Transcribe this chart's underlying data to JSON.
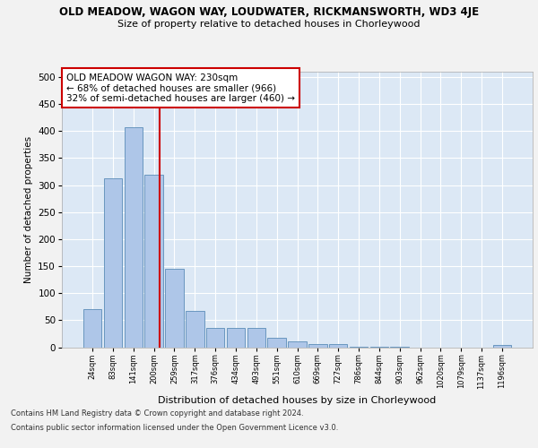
{
  "title1": "OLD MEADOW, WAGON WAY, LOUDWATER, RICKMANSWORTH, WD3 4JE",
  "title2": "Size of property relative to detached houses in Chorleywood",
  "xlabel": "Distribution of detached houses by size in Chorleywood",
  "ylabel": "Number of detached properties",
  "categories": [
    "24sqm",
    "83sqm",
    "141sqm",
    "200sqm",
    "259sqm",
    "317sqm",
    "376sqm",
    "434sqm",
    "493sqm",
    "551sqm",
    "610sqm",
    "669sqm",
    "727sqm",
    "786sqm",
    "844sqm",
    "903sqm",
    "962sqm",
    "1020sqm",
    "1079sqm",
    "1137sqm",
    "1196sqm"
  ],
  "values": [
    70,
    312,
    408,
    320,
    145,
    68,
    35,
    35,
    35,
    18,
    11,
    5,
    6,
    1,
    1,
    1,
    0,
    0,
    0,
    0,
    4
  ],
  "bar_color": "#aec6e8",
  "bar_edge_color": "#5b8db8",
  "vline_x_index": 3,
  "vline_color": "#cc0000",
  "annotation_text": "OLD MEADOW WAGON WAY: 230sqm\n← 68% of detached houses are smaller (966)\n32% of semi-detached houses are larger (460) →",
  "annotation_box_color": "#ffffff",
  "annotation_box_edge": "#cc0000",
  "footnote1": "Contains HM Land Registry data © Crown copyright and database right 2024.",
  "footnote2": "Contains public sector information licensed under the Open Government Licence v3.0.",
  "ylim": [
    0,
    510
  ],
  "yticks": [
    0,
    50,
    100,
    150,
    200,
    250,
    300,
    350,
    400,
    450,
    500
  ],
  "background_color": "#dce8f5",
  "grid_color": "#ffffff",
  "fig_bg": "#f2f2f2"
}
